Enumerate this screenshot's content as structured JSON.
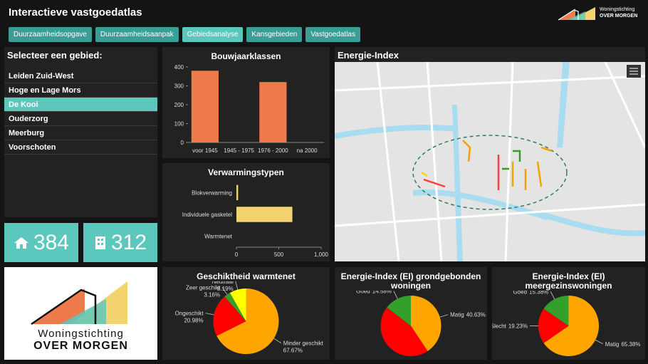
{
  "header": {
    "title": "Interactieve vastgoedatlas"
  },
  "tabs": {
    "items": [
      "Duurzaamheidsopgave",
      "Duurzaamheidsaanpak",
      "Gebiedsanalyse",
      "Kansgebieden",
      "Vastgoedatlas"
    ],
    "active": 2
  },
  "logo": {
    "line1": "Woningstichting",
    "line2": "OVER MORGEN"
  },
  "sidebar": {
    "title": "Selecteer een gebied:",
    "items": [
      "Leiden Zuid-West",
      "Hoge en Lage Mors",
      "De Kooi",
      "Ouderzorg",
      "Meerburg",
      "Voorschoten"
    ],
    "selected": 2
  },
  "stats": [
    384,
    312
  ],
  "map": {
    "title": "Energie-Index"
  },
  "chart_data": [
    {
      "type": "bar",
      "title": "Bouwjaarklassen",
      "categories": [
        "voor 1945",
        "1945 - 1975",
        "1976 - 2000",
        "na 2000"
      ],
      "values": [
        380,
        0,
        320,
        0
      ],
      "color": "#ef7b4c",
      "ylim": [
        0,
        400
      ],
      "yticks": [
        0,
        100,
        200,
        300,
        400
      ]
    },
    {
      "type": "bar",
      "horizontal": true,
      "title": "Verwarmingstypen",
      "categories": [
        "Blokverwarming",
        "Individuele gasketel",
        "Warmtenet"
      ],
      "values": [
        20,
        660,
        0
      ],
      "color": "#f3d36e",
      "xlim": [
        0,
        1000
      ],
      "xticks": [
        0,
        500,
        {
          "value": 1000,
          "label": "1,000"
        }
      ]
    },
    {
      "type": "pie",
      "title": "Geschiktheid warmtenet",
      "categories": [
        "Minder geschikt",
        "Ongeschikt",
        "Zeer geschikt",
        "Neutraal"
      ],
      "values": [
        67.67,
        20.98,
        3.16,
        8.19
      ],
      "value_labels": [
        "67.67%",
        "20.98%",
        "3.16%",
        "8.19%"
      ],
      "colors": [
        "#ffa500",
        "#ff0000",
        "#33a02c",
        "#ffff00"
      ]
    },
    {
      "type": "pie",
      "title": "Energie-Index (EI) grondgebonden woningen",
      "categories": [
        "Matig",
        null,
        "Goed"
      ],
      "values": [
        40.63,
        44.79,
        14.58
      ],
      "value_labels": [
        "40.63%",
        null,
        "14.58%"
      ],
      "colors": [
        "#ffa500",
        "#ff0000",
        "#33a02c"
      ]
    },
    {
      "type": "pie",
      "title": "Energie-Index (EI) meergezinswoningen",
      "categories": [
        "Matig",
        "Slecht",
        "Goed"
      ],
      "values": [
        65.38,
        19.23,
        15.38
      ],
      "value_labels": [
        "65.38%",
        "19.23%",
        "15.38%"
      ],
      "colors": [
        "#ffa500",
        "#ff0000",
        "#33a02c"
      ]
    }
  ]
}
